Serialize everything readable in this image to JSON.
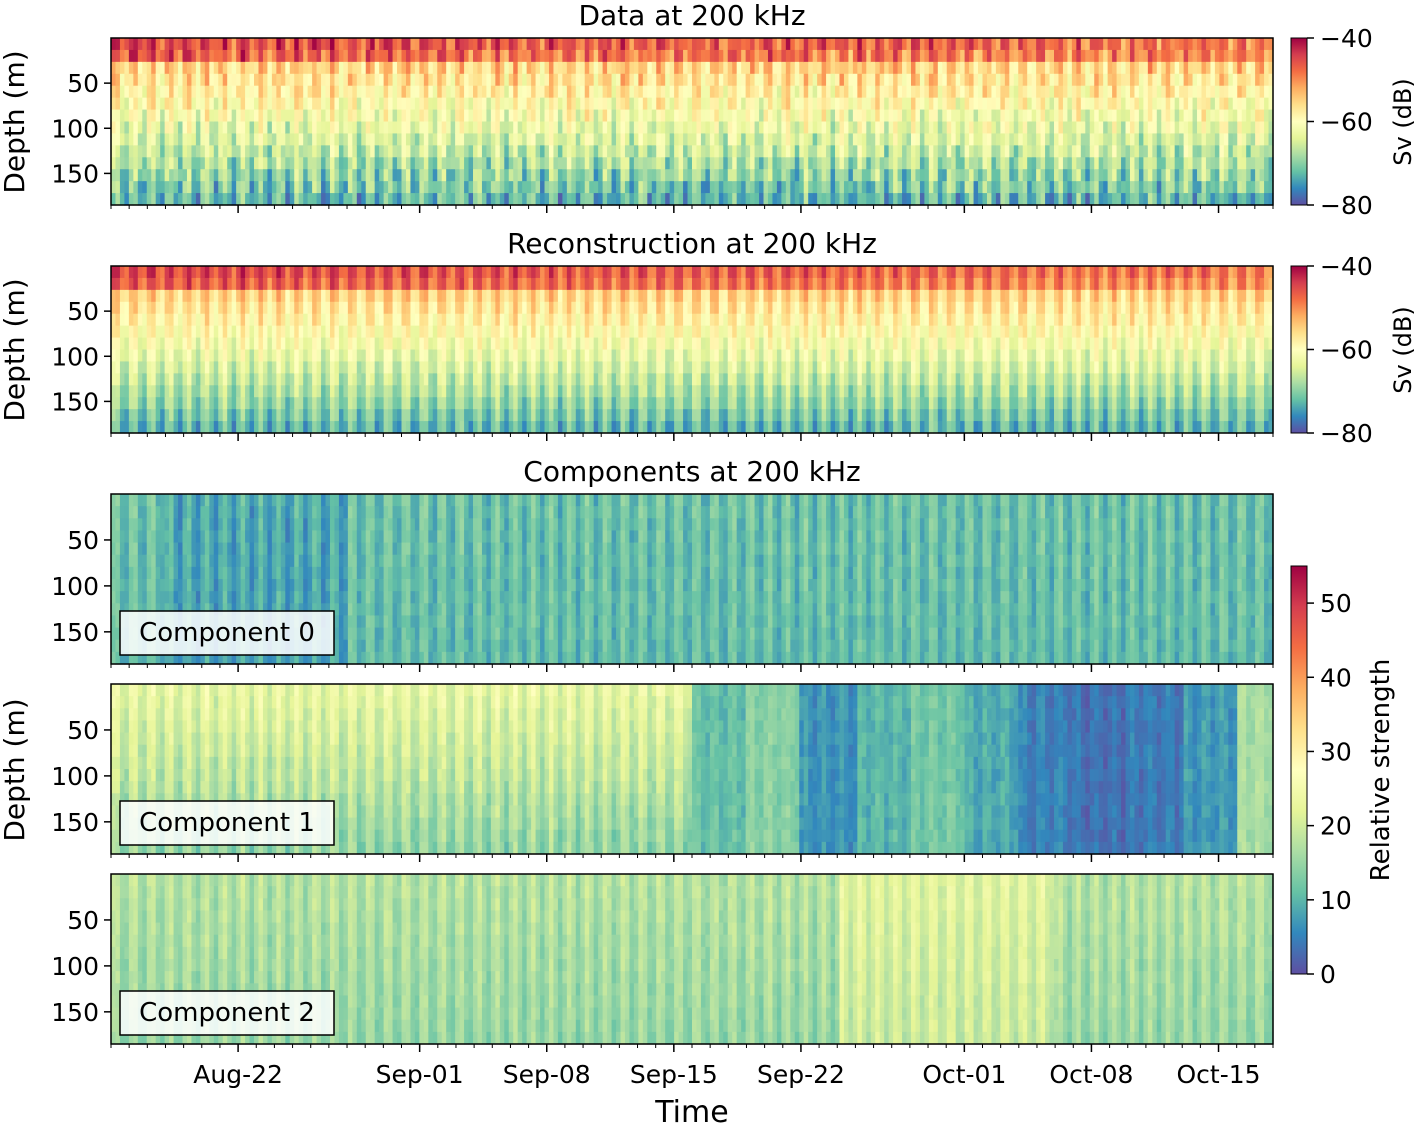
{
  "chart_data": {
    "type": "heatmap",
    "xlabel": "Time",
    "ylabel": "Depth (m)",
    "x_range": [
      "2018-08-15",
      "2018-10-18"
    ],
    "x_ticks": [
      "Aug-22",
      "Sep-01",
      "Sep-08",
      "Sep-15",
      "Sep-22",
      "Oct-01",
      "Oct-08",
      "Oct-15"
    ],
    "y_range_m": [
      0,
      185
    ],
    "y_ticks": [
      50,
      100,
      150
    ],
    "y_inverted": true,
    "grid": false,
    "colormap": "Spectral_r",
    "panels": [
      {
        "title": "Data at 200 kHz",
        "colorbar_label": "Sv (dB)",
        "clim": [
          -80,
          -40
        ],
        "colorbar_ticks": [
          "−40",
          "−60",
          "−80"
        ]
      },
      {
        "title": "Reconstruction at 200 kHz",
        "colorbar_label": "Sv (dB)",
        "clim": [
          -80,
          -40
        ],
        "colorbar_ticks": [
          "−40",
          "−60",
          "−80"
        ]
      }
    ],
    "components_title": "Components at 200 kHz",
    "components_colorbar_label": "Relative strength",
    "components_clim": [
      0,
      55
    ],
    "components_colorbar_ticks": [
      "0",
      "10",
      "20",
      "30",
      "40",
      "50"
    ],
    "components": [
      {
        "label": "Component 0"
      },
      {
        "label": "Component 1"
      },
      {
        "label": "Component 2"
      }
    ]
  }
}
